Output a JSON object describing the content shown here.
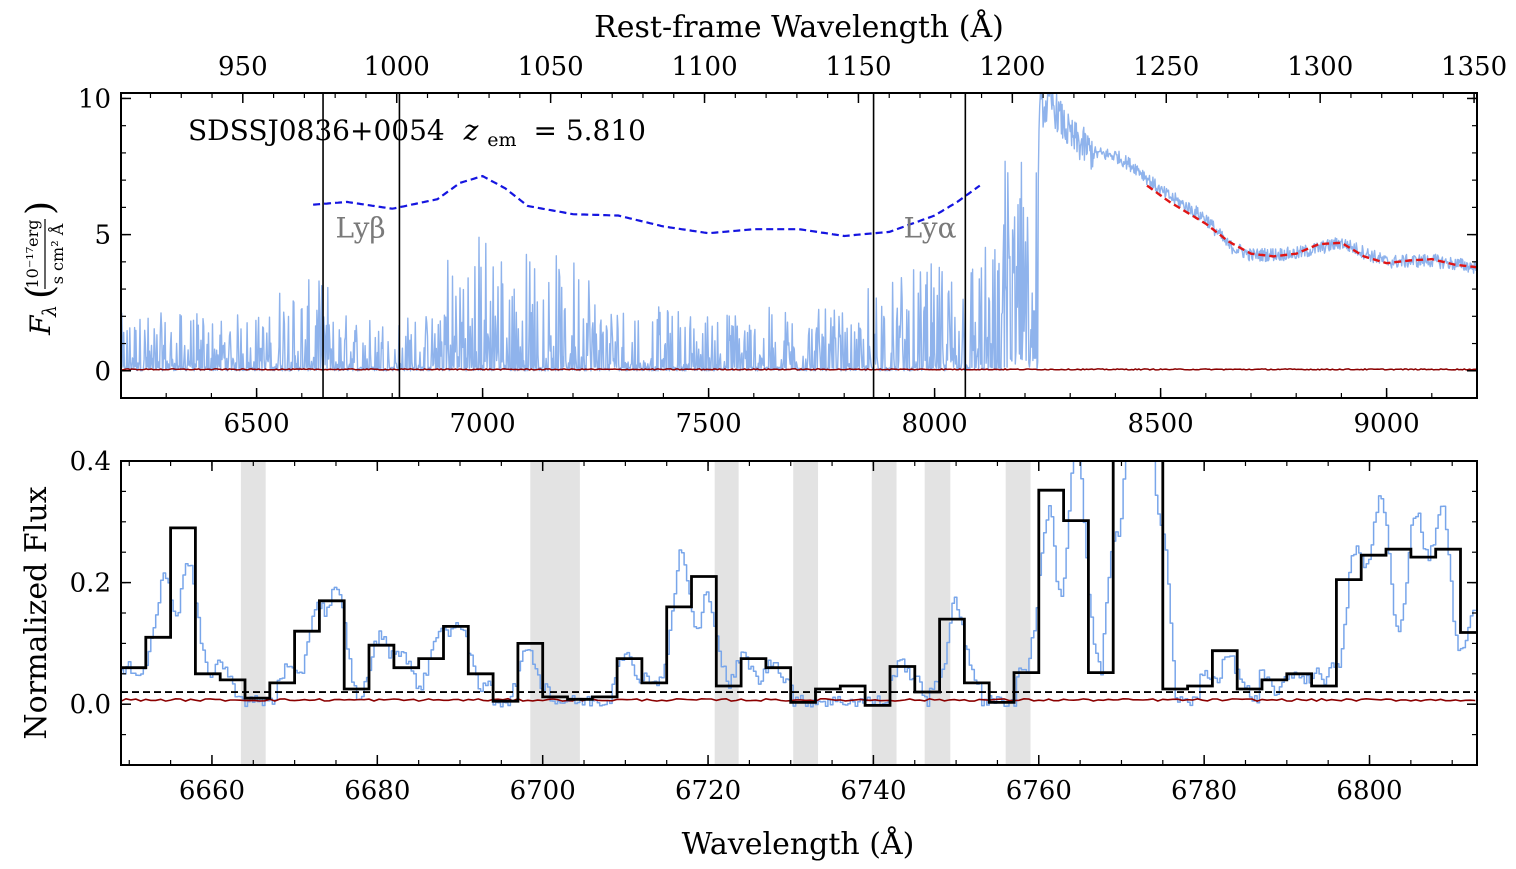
{
  "chart_data": [
    {
      "type": "line",
      "panel": "top",
      "annotation_object": "SDSSJ0836+0054",
      "annotation_z_symbol": "z",
      "annotation_z_sub": "em",
      "annotation_z_value": "= 5.810",
      "ylabel_symbol": "F",
      "ylabel_sub": "λ",
      "ylabel_units_num": "10⁻¹⁷erg",
      "ylabel_units_den": "s cm² Å",
      "top_xlabel": "Rest-frame Wavelength (Å)",
      "xlim": [
        6200,
        9200
      ],
      "ylim": [
        -1,
        10.2
      ],
      "x_ticks": [
        6500,
        7000,
        7500,
        8000,
        8500,
        9000
      ],
      "x_ticks_minor_step": 100,
      "y_ticks": [
        0,
        5,
        10
      ],
      "y_ticks_minor_step": 1,
      "top_ticks_rest": [
        950,
        1000,
        1050,
        1100,
        1150,
        1200,
        1250,
        1300,
        1350
      ],
      "z_em": 5.81,
      "vertical_lines_x": [
        6647,
        6816,
        7865,
        8068
      ],
      "line_labels": [
        {
          "text": "Lyβ",
          "x": 6730,
          "y": 4.9
        },
        {
          "text": "Lyα",
          "x": 7990,
          "y": 4.9
        }
      ],
      "continuum_fit_forest": {
        "color": "#1515e0",
        "x": [
          6625,
          6700,
          6800,
          6900,
          6950,
          7000,
          7050,
          7100,
          7200,
          7300,
          7400,
          7500,
          7600,
          7700,
          7800,
          7900,
          8000,
          8050,
          8100
        ],
        "y": [
          6.1,
          6.2,
          5.95,
          6.3,
          6.9,
          7.15,
          6.7,
          6.05,
          5.75,
          5.7,
          5.3,
          5.05,
          5.2,
          5.2,
          4.95,
          5.1,
          5.7,
          6.2,
          6.8
        ]
      },
      "continuum_fit_red": {
        "color": "#e01515",
        "x": [
          8470,
          8520,
          8560,
          8600,
          8650,
          8700,
          8750,
          8800,
          8850,
          8900,
          8950,
          9000,
          9050,
          9100,
          9150,
          9200
        ],
        "y": [
          6.8,
          6.2,
          5.8,
          5.4,
          4.75,
          4.3,
          4.2,
          4.3,
          4.65,
          4.7,
          4.2,
          3.95,
          4.05,
          4.1,
          3.9,
          3.8
        ]
      },
      "series": [
        {
          "color": "#8fb3ec"
        },
        {
          "color": "#8b0000"
        }
      ]
    },
    {
      "type": "line",
      "panel": "bottom",
      "xlabel": "Wavelength (Å)",
      "ylabel": "Normalized Flux",
      "xlim": [
        6649,
        6813
      ],
      "ylim": [
        -0.1,
        0.4
      ],
      "x_ticks": [
        6660,
        6680,
        6700,
        6720,
        6740,
        6760,
        6780,
        6800
      ],
      "x_ticks_minor_step": 5,
      "y_ticks": [
        0.0,
        0.2,
        0.4
      ],
      "y_tick_labels": [
        "0.0",
        "0.2",
        "0.4"
      ],
      "y_ticks_minor_step": 0.05,
      "threshold_y": 0.02,
      "shaded_regions": [
        [
          6663.5,
          6666.5
        ],
        [
          6698.5,
          6704.5
        ],
        [
          6720.8,
          6723.7
        ],
        [
          6730.3,
          6733.3
        ],
        [
          6739.8,
          6742.8
        ],
        [
          6746.2,
          6749.3
        ],
        [
          6756,
          6759
        ]
      ],
      "binned_flux": {
        "color": "#000000",
        "edges": [
          6649,
          6652,
          6655,
          6658,
          6661,
          6664,
          6667,
          6670,
          6673,
          6676,
          6679,
          6682,
          6685,
          6688,
          6691,
          6694,
          6697,
          6700,
          6703,
          6706,
          6709,
          6712,
          6715,
          6718,
          6721,
          6724,
          6727,
          6730,
          6733,
          6736,
          6739,
          6742,
          6745,
          6748,
          6751,
          6754,
          6757,
          6760,
          6763,
          6766,
          6769,
          6772,
          6775,
          6778,
          6781,
          6784,
          6787,
          6790,
          6793,
          6796,
          6799,
          6802,
          6805,
          6808,
          6811,
          6813
        ],
        "values": [
          0.06,
          0.11,
          0.29,
          0.05,
          0.04,
          0.01,
          0.035,
          0.12,
          0.17,
          0.025,
          0.097,
          0.06,
          0.075,
          0.128,
          0.05,
          0.005,
          0.1,
          0.012,
          0.008,
          0.012,
          0.075,
          0.035,
          0.16,
          0.21,
          0.03,
          0.075,
          0.06,
          0.003,
          0.025,
          0.03,
          -0.002,
          0.062,
          0.02,
          0.14,
          0.035,
          0.003,
          0.052,
          0.352,
          0.302,
          0.052,
          0.6,
          0.6,
          0.025,
          0.03,
          0.088,
          0.025,
          0.04,
          0.05,
          0.03,
          0.205,
          0.245,
          0.255,
          0.242,
          0.255,
          0.118
        ]
      },
      "series": [
        {
          "color": "#79a6ea"
        },
        {
          "color": "#8b0000"
        }
      ]
    }
  ]
}
